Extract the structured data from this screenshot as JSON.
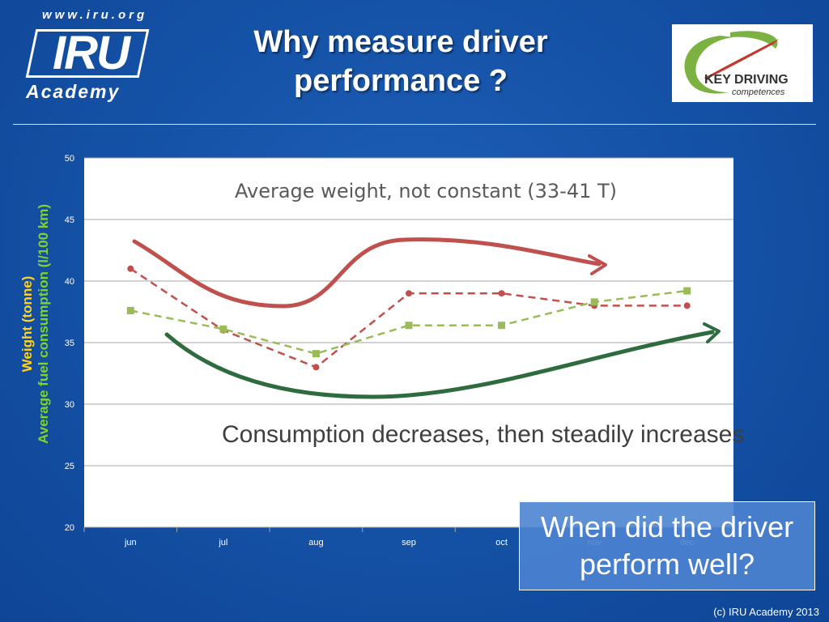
{
  "header": {
    "title_line1": "Why measure driver",
    "title_line2": "performance ?",
    "iru_logo": {
      "url": "www.iru.org",
      "mark": "IRU",
      "sub": "Academy"
    },
    "kd_logo": {
      "line1": "KEY DRIVING",
      "line2": "competences",
      "colors": {
        "swoosh_green": "#7bb241",
        "swoosh_red": "#c0392b"
      }
    }
  },
  "annotations": {
    "weight_note": "Average weight, not constant (33-41 T)",
    "consumption_note": "Consumption decreases, then steadily increases",
    "question": "When did the driver perform well?"
  },
  "footer": {
    "copyright": "(c) IRU Academy 2013"
  },
  "colors": {
    "background": "#1553a8",
    "weight_series": "#c0504d",
    "fuel_series": "#9bbb59",
    "trend_weight": "#c0504d",
    "trend_fuel": "#2e6b3e",
    "ylabel_weight": "#ffd21f",
    "ylabel_fuel": "#7fd32a"
  },
  "chart_data": {
    "type": "line",
    "categories": [
      "jun",
      "jul",
      "aug",
      "sep",
      "oct",
      "nov",
      "dec"
    ],
    "ylim": [
      20,
      50
    ],
    "yticks": [
      20,
      25,
      30,
      35,
      40,
      45,
      50
    ],
    "ylabel_line1": "Weight (tonne)",
    "ylabel_line2": "Average fuel consumption (l/100 km)",
    "grid": true,
    "series": [
      {
        "values": [
          41,
          36,
          33,
          39,
          39,
          38,
          38
        ],
        "marker": "circle",
        "color": "#c0504d",
        "dash": true
      },
      {
        "values": [
          37.6,
          36.1,
          34.1,
          36.4,
          36.4,
          38.3,
          39.2
        ],
        "marker": "square",
        "color": "#9bbb59",
        "dash": true
      }
    ]
  }
}
